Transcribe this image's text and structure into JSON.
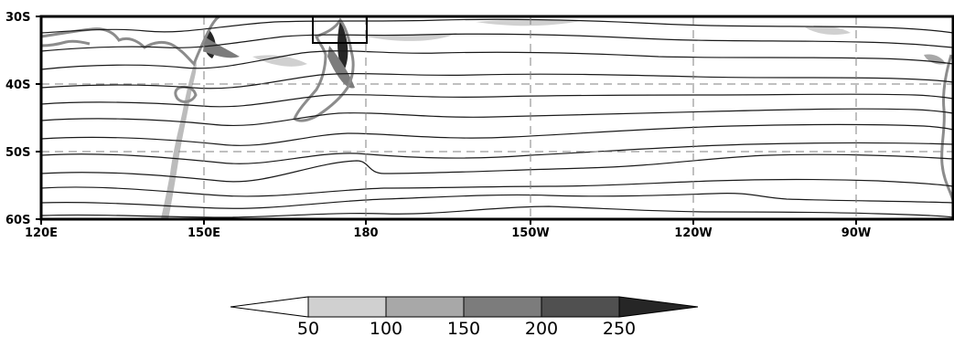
{
  "map": {
    "lat_labels": [
      "30S",
      "40S",
      "50S",
      "60S"
    ],
    "lon_labels": [
      "120E",
      "150E",
      "180",
      "150W",
      "120W",
      "90W"
    ],
    "gridlines": "dashed",
    "highlight_box": "box outline just west of 180, near 30S"
  },
  "colorbar": {
    "orientation": "horizontal",
    "extend": "both",
    "tick_labels": [
      "50",
      "100",
      "150",
      "200",
      "250"
    ],
    "fill_colors": [
      "#ffffff",
      "#d0d0d0",
      "#a8a8a8",
      "#7c7c7c",
      "#505050",
      "#262626"
    ]
  },
  "colors": {
    "contour": "#1a1a1a",
    "coastline": "#8c8c8c",
    "gridline": "#808080",
    "frame": "#000000"
  }
}
